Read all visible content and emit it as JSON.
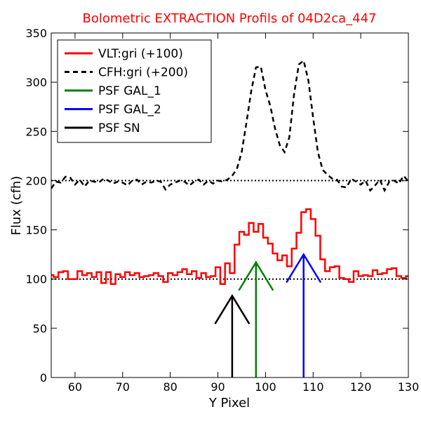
{
  "chart_data": {
    "type": "line",
    "title": "Bolometric EXTRACTION Profils of 04D2ca_447",
    "title_color": "#ff0000",
    "xlabel": "Y Pixel",
    "ylabel": "Flux (cfh)",
    "xlim": [
      55,
      130
    ],
    "ylim": [
      0,
      350
    ],
    "xticks": [
      60,
      70,
      80,
      90,
      100,
      110,
      120,
      130
    ],
    "yticks": [
      0,
      50,
      100,
      150,
      200,
      250,
      300,
      350
    ],
    "legend_position": "top-left",
    "reference_lines": [
      {
        "y": 100,
        "style": "dotted",
        "color": "#000000"
      },
      {
        "y": 200,
        "style": "dotted",
        "color": "#000000"
      }
    ],
    "series": [
      {
        "name": "VLT:gri (+100)",
        "color": "#ff0000",
        "style": "steps",
        "x": [
          55,
          56,
          57,
          58,
          59,
          60,
          61,
          62,
          63,
          64,
          65,
          66,
          67,
          68,
          69,
          70,
          71,
          72,
          73,
          74,
          75,
          76,
          77,
          78,
          79,
          80,
          81,
          82,
          83,
          84,
          85,
          86,
          87,
          88,
          89,
          90,
          91,
          92,
          93,
          94,
          95,
          96,
          97,
          98,
          99,
          100,
          101,
          102,
          103,
          104,
          105,
          106,
          107,
          108,
          109,
          110,
          111,
          112,
          113,
          114,
          115,
          116,
          117,
          118,
          119,
          120,
          121,
          122,
          123,
          124,
          125,
          126,
          127,
          128,
          129,
          130
        ],
        "y": [
          104,
          102,
          107,
          108,
          100,
          100,
          108,
          104,
          106,
          102,
          107,
          96,
          107,
          95,
          105,
          102,
          107,
          104,
          106,
          102,
          103,
          104,
          106,
          103,
          97,
          106,
          104,
          107,
          110,
          105,
          108,
          101,
          106,
          102,
          103,
          112,
          95,
          116,
          106,
          135,
          148,
          145,
          157,
          148,
          156,
          142,
          136,
          126,
          119,
          124,
          113,
          131,
          147,
          168,
          171,
          161,
          144,
          120,
          108,
          112,
          113,
          101,
          100,
          97,
          108,
          103,
          104,
          103,
          109,
          105,
          106,
          110,
          111,
          103,
          101,
          103
        ]
      },
      {
        "name": "CFH:gri (+200)",
        "color": "#000000",
        "style": "dashed",
        "x": [
          55,
          56,
          57,
          58,
          59,
          60,
          61,
          62,
          63,
          64,
          65,
          66,
          67,
          68,
          69,
          70,
          71,
          72,
          73,
          74,
          75,
          76,
          77,
          78,
          79,
          80,
          81,
          82,
          83,
          84,
          85,
          86,
          87,
          88,
          89,
          90,
          91,
          92,
          93,
          94,
          95,
          96,
          97,
          98,
          99,
          100,
          101,
          102,
          103,
          104,
          105,
          106,
          107,
          108,
          109,
          110,
          111,
          112,
          113,
          114,
          115,
          116,
          117,
          118,
          119,
          120,
          121,
          122,
          123,
          124,
          125,
          126,
          127,
          128,
          129,
          130
        ],
        "y": [
          192,
          199,
          198,
          204,
          203,
          196,
          201,
          194,
          200,
          199,
          198,
          202,
          200,
          197,
          199,
          198,
          195,
          200,
          201,
          196,
          199,
          198,
          200,
          199,
          191,
          196,
          198,
          200,
          199,
          195,
          199,
          201,
          196,
          200,
          197,
          200,
          199,
          201,
          205,
          212,
          229,
          259,
          291,
          315,
          316,
          292,
          276,
          253,
          236,
          229,
          244,
          288,
          318,
          322,
          302,
          264,
          229,
          211,
          206,
          202,
          201,
          194,
          193,
          202,
          199,
          196,
          200,
          190,
          195,
          201,
          190,
          199,
          200,
          197,
          205,
          199
        ]
      },
      {
        "name": "PSF GAL_1",
        "color": "#008000",
        "style": "arrow",
        "x_position": 98,
        "peak": 117,
        "base": 0
      },
      {
        "name": "PSF GAL_2",
        "color": "#0000ff",
        "style": "arrow",
        "x_position": 108,
        "peak": 125,
        "base": 0
      },
      {
        "name": "PSF SN",
        "color": "#000000",
        "style": "arrow",
        "x_position": 93,
        "peak": 83,
        "base": 0
      }
    ]
  }
}
